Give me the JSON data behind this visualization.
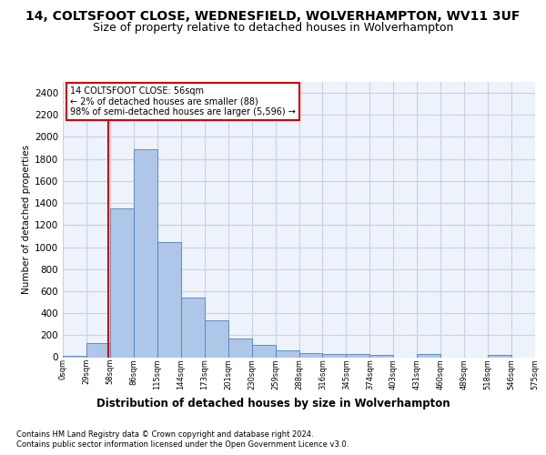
{
  "title": "14, COLTSFOOT CLOSE, WEDNESFIELD, WOLVERHAMPTON, WV11 3UF",
  "subtitle": "Size of property relative to detached houses in Wolverhampton",
  "xlabel": "Distribution of detached houses by size in Wolverhampton",
  "ylabel": "Number of detached properties",
  "footer1": "Contains HM Land Registry data © Crown copyright and database right 2024.",
  "footer2": "Contains public sector information licensed under the Open Government Licence v3.0.",
  "bin_labels": [
    "0sqm",
    "29sqm",
    "58sqm",
    "86sqm",
    "115sqm",
    "144sqm",
    "173sqm",
    "201sqm",
    "230sqm",
    "259sqm",
    "288sqm",
    "316sqm",
    "345sqm",
    "374sqm",
    "403sqm",
    "431sqm",
    "460sqm",
    "489sqm",
    "518sqm",
    "546sqm",
    "575sqm"
  ],
  "bar_values": [
    15,
    125,
    1350,
    1890,
    1045,
    545,
    335,
    170,
    110,
    65,
    40,
    30,
    30,
    20,
    0,
    25,
    0,
    0,
    20,
    0
  ],
  "bar_color": "#aec6e8",
  "bar_edge_color": "#4f81bd",
  "vline_x": 1.93,
  "vline_color": "#cc0000",
  "ylim": [
    0,
    2500
  ],
  "yticks": [
    0,
    200,
    400,
    600,
    800,
    1000,
    1200,
    1400,
    1600,
    1800,
    2000,
    2200,
    2400
  ],
  "annotation_text": "14 COLTSFOOT CLOSE: 56sqm\n← 2% of detached houses are smaller (88)\n98% of semi-detached houses are larger (5,596) →",
  "annotation_box_color": "#cc0000",
  "bg_color": "#eef2fb",
  "grid_color": "#c8d0e8",
  "title_fontsize": 10,
  "subtitle_fontsize": 9
}
